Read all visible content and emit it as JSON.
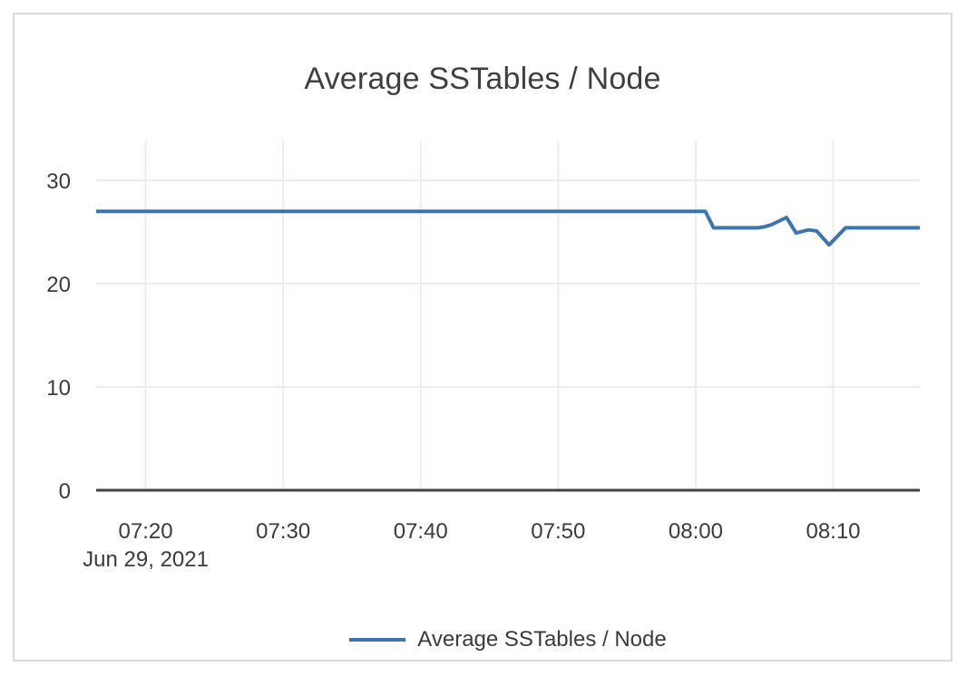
{
  "chart_data": {
    "type": "line",
    "title": "Average SSTables / Node",
    "xlabel": "",
    "ylabel": "",
    "x_date_label": "Jun 29, 2021",
    "x_tick_labels": [
      "07:20",
      "07:30",
      "07:40",
      "07:50",
      "08:00",
      "08:10"
    ],
    "x_tick_minutes": [
      20,
      30,
      40,
      50,
      60,
      70
    ],
    "x_domain_minutes": [
      16.4,
      76.3
    ],
    "x_start_time": "07:16:30",
    "x_end_time": "08:16:20",
    "y_ticks": [
      0,
      10,
      20,
      30
    ],
    "ylim": [
      0,
      34
    ],
    "grid": true,
    "legend_position": "bottom",
    "series": [
      {
        "name": "Average SSTables / Node",
        "color": "#3c74b0",
        "points": [
          {
            "time": "07:16:30",
            "minutes": 16.4,
            "value": 27
          },
          {
            "time": "08:00:40",
            "minutes": 60.7,
            "value": 27
          },
          {
            "time": "08:01:20",
            "minutes": 61.3,
            "value": 25.4
          },
          {
            "time": "08:04:30",
            "minutes": 64.5,
            "value": 25.4
          },
          {
            "time": "08:05:00",
            "minutes": 65.0,
            "value": 25.5
          },
          {
            "time": "08:05:30",
            "minutes": 65.5,
            "value": 25.7
          },
          {
            "time": "08:06:40",
            "minutes": 66.6,
            "value": 26.4
          },
          {
            "time": "08:07:20",
            "minutes": 67.3,
            "value": 24.9
          },
          {
            "time": "08:08:10",
            "minutes": 68.2,
            "value": 25.2
          },
          {
            "time": "08:08:50",
            "minutes": 68.8,
            "value": 25.1
          },
          {
            "time": "08:09:40",
            "minutes": 69.7,
            "value": 23.75
          },
          {
            "time": "08:10:55",
            "minutes": 70.9,
            "value": 25.4
          },
          {
            "time": "08:16:20",
            "minutes": 76.3,
            "value": 25.4
          }
        ]
      }
    ],
    "colors": {
      "line": "#3c74b0",
      "grid": "#ececec",
      "axis": "#424242",
      "text": "#3b3b3b",
      "card_border": "#dbdbdb",
      "background": "#ffffff"
    }
  },
  "legend": {
    "items": [
      {
        "label": "Average SSTables / Node",
        "color": "#3c74b0"
      }
    ]
  }
}
